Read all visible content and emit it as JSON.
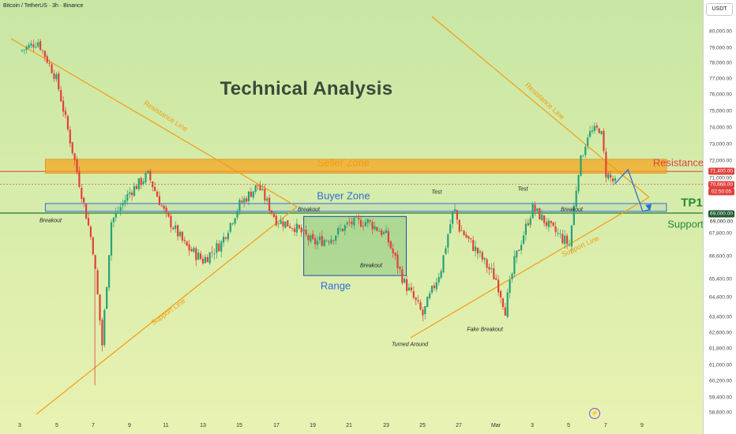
{
  "header": {
    "symbol_title": "Bitcoin / TetherUS · 3h · Binance",
    "currency_button": "USDT"
  },
  "colors": {
    "candle_up": "#27a17a",
    "candle_down": "#e0413a",
    "trend": "#f39c12",
    "seller_zone": "#f5a623",
    "buyer_zone": "#2d6fd6",
    "range_box": "#2d9a4a",
    "resistance_line": "#e0413a",
    "support_line": "#1e7a36",
    "projection": "#2d6fd6"
  },
  "annotations": {
    "title": "Technical Analysis",
    "seller_zone": "Seller Zone",
    "buyer_zone": "Buyer Zone",
    "range": "Range",
    "resistance": "Resistance",
    "tp1": "TP1",
    "support": "Support",
    "resistance_line_left": "Resistance Line",
    "resistance_line_right": "Resistance Line",
    "support_line_left": "Support Line",
    "support_line_right": "Support Line",
    "breakout_left": "Breakout",
    "breakout_mid": "Breakout",
    "breakout_range": "Breakout",
    "breakout_right": "Breakout",
    "test_1": "Test",
    "test_2": "Test",
    "turned_around": "Turned Around",
    "fake_breakout": "Fake Breakout"
  },
  "price_tags": {
    "resistance": "71,400.00",
    "last": "70,668.00",
    "countdown": "02:50:05",
    "support": "69,000.00"
  },
  "chart_data": {
    "type": "candlestick",
    "y_axis": {
      "range": [
        58200,
        81500
      ],
      "ticks": [
        "80,000.00",
        "79,000.00",
        "78,000.00",
        "77,000.00",
        "76,000.00",
        "75,000.00",
        "74,000.00",
        "73,000.00",
        "72,000.00",
        "71,000.00",
        "69,000.00",
        "67,800.00",
        "66,600.00",
        "65,400.00",
        "64,400.00",
        "63,400.00",
        "62,600.00",
        "61,800.00",
        "61,000.00",
        "60,200.00",
        "59,400.00",
        "58,600.00"
      ]
    },
    "x_axis": {
      "ticks": [
        "3",
        "5",
        "7",
        "9",
        "11",
        "13",
        "15",
        "17",
        "19",
        "21",
        "23",
        "25",
        "27",
        "Mar",
        "3",
        "5",
        "7",
        "9"
      ]
    },
    "levels": {
      "seller_zone": [
        71300,
        72100
      ],
      "buyer_zone": [
        69100,
        69550
      ],
      "resistance": 71400,
      "support": 69000,
      "last": 70668
    },
    "range_box": {
      "from": "Feb 17",
      "to": "Feb 23",
      "price": [
        65600,
        68800
      ]
    },
    "close_path": [
      [
        2,
        78800
      ],
      [
        3,
        79400
      ],
      [
        4,
        77000
      ],
      [
        5,
        72000
      ],
      [
        6,
        67000
      ],
      [
        6.5,
        62000
      ],
      [
        7,
        68500
      ],
      [
        8,
        70200
      ],
      [
        9,
        71200
      ],
      [
        10,
        68800
      ],
      [
        11,
        67200
      ],
      [
        12,
        66400
      ],
      [
        13,
        67300
      ],
      [
        14,
        69500
      ],
      [
        15,
        70600
      ],
      [
        16,
        68600
      ],
      [
        17,
        68200
      ],
      [
        18,
        67300
      ],
      [
        19,
        67600
      ],
      [
        20,
        68400
      ],
      [
        21,
        68500
      ],
      [
        22,
        67700
      ],
      [
        23,
        65200
      ],
      [
        24,
        63500
      ],
      [
        25,
        66000
      ],
      [
        25.7,
        69300
      ],
      [
        26,
        68100
      ],
      [
        27,
        66800
      ],
      [
        28,
        65400
      ],
      [
        28.5,
        63800
      ],
      [
        29,
        66300
      ],
      [
        30,
        69300
      ],
      [
        31,
        68100
      ],
      [
        32,
        67200
      ],
      [
        32.5,
        71500
      ],
      [
        33,
        73600
      ],
      [
        33.7,
        74000
      ],
      [
        34,
        71300
      ],
      [
        34.5,
        70700
      ]
    ],
    "projection": [
      [
        34.5,
        70700
      ],
      [
        35.2,
        71500
      ],
      [
        36,
        69100
      ],
      [
        36.4,
        69200
      ]
    ]
  }
}
